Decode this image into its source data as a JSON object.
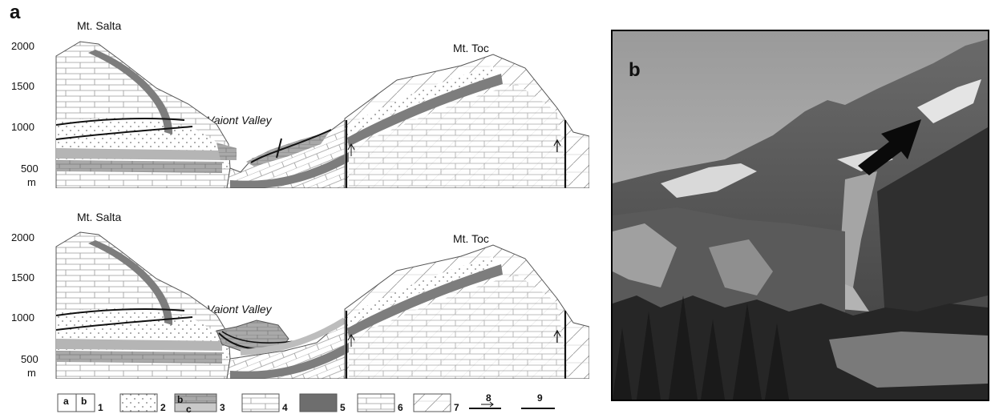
{
  "panel_a": {
    "letter": "a",
    "sections": [
      {
        "ticks": [
          "2000",
          "1500",
          "1000",
          "500"
        ],
        "unit": "m",
        "left_peak": "Mt. Salta",
        "right_peak": "Mt. Toc",
        "valley": "Vaiont Valley"
      },
      {
        "ticks": [
          "2000",
          "1500",
          "1000",
          "500"
        ],
        "unit": "m",
        "left_peak": "Mt. Salta",
        "right_peak": "Mt. Toc",
        "valley": "Vaiont Valley"
      }
    ],
    "legend": [
      {
        "num": "1",
        "sub": [
          "a",
          "b"
        ]
      },
      {
        "num": "2"
      },
      {
        "num": "3",
        "sub": [
          "b",
          "c"
        ]
      },
      {
        "num": "4"
      },
      {
        "num": "5"
      },
      {
        "num": "6"
      },
      {
        "num": "7"
      },
      {
        "num": "8"
      },
      {
        "num": "9"
      }
    ]
  },
  "panel_b": {
    "letter": "b"
  },
  "colors": {
    "band": "#7d7d7d",
    "light_band": "#b8b8b8",
    "line": "#111111",
    "texture": "#9a9a9a"
  }
}
